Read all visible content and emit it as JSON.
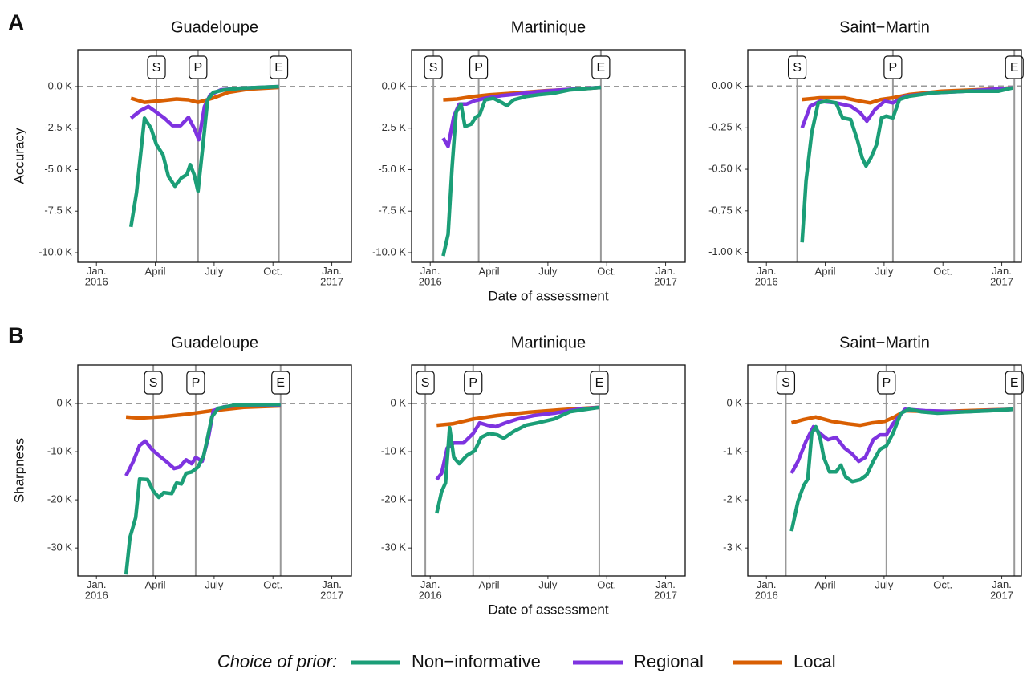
{
  "panel_labels": [
    "A",
    "B"
  ],
  "legend": {
    "title": "Choice of prior:",
    "items": [
      {
        "name": "Non−informative",
        "color": "#1b9e77"
      },
      {
        "name": "Regional",
        "color": "#7e33e0"
      },
      {
        "name": "Local",
        "color": "#d95f02"
      }
    ]
  },
  "chart_data": [
    {
      "type": "line",
      "title": "Guadeloupe",
      "ylabel": "Accuracy",
      "xlim": [
        -0.95,
        13
      ],
      "ylim": [
        -10.58,
        2.22
      ],
      "xticks": [
        {
          "value": 0,
          "label": "Jan.\n2016"
        },
        {
          "value": 3,
          "label": "April"
        },
        {
          "value": 6,
          "label": "July"
        },
        {
          "value": 9,
          "label": "Oct."
        },
        {
          "value": 12,
          "label": "Jan.\n2017"
        }
      ],
      "yticks": [
        {
          "value": 0,
          "label": "0.0 K"
        },
        {
          "value": -2.5,
          "label": "-2.5 K"
        },
        {
          "value": -5,
          "label": "-5.0 K"
        },
        {
          "value": -7.5,
          "label": "-7.5 K"
        },
        {
          "value": -10,
          "label": "-10.0 K"
        }
      ],
      "reference_line": 0,
      "events": [
        {
          "label": "S",
          "x": 3.06
        },
        {
          "label": "P",
          "x": 5.18
        },
        {
          "label": "E",
          "x": 9.3
        }
      ],
      "series": [
        {
          "x": [
            1.76,
            2.04,
            2.45,
            2.78,
            3.06,
            3.39,
            3.67,
            4.0,
            4.33,
            4.61,
            4.78,
            4.98,
            5.18,
            5.43,
            5.67,
            5.96,
            6.53,
            7.35,
            9.3
          ],
          "values": [
            -8.45,
            -6.4,
            -1.9,
            -2.5,
            -3.5,
            -4.1,
            -5.4,
            -6.0,
            -5.5,
            -5.3,
            -4.7,
            -5.3,
            -6.3,
            -3.5,
            -0.8,
            -0.35,
            -0.2,
            -0.1,
            0
          ]
        },
        {
          "x": [
            1.76,
            2.24,
            2.65,
            3.06,
            3.47,
            3.88,
            4.29,
            4.69,
            4.98,
            5.22,
            5.51,
            5.8,
            6.33,
            7.35,
            9.3
          ],
          "values": [
            -1.9,
            -1.45,
            -1.2,
            -1.55,
            -1.9,
            -2.35,
            -2.35,
            -1.85,
            -2.5,
            -3.2,
            -1.2,
            -0.5,
            -0.2,
            -0.1,
            0
          ]
        },
        {
          "x": [
            1.76,
            2.45,
            3.27,
            4.08,
            4.69,
            5.18,
            5.92,
            6.73,
            7.76,
            9.3
          ],
          "values": [
            -0.7,
            -0.95,
            -0.85,
            -0.75,
            -0.8,
            -0.95,
            -0.7,
            -0.35,
            -0.15,
            -0.05
          ]
        }
      ]
    },
    {
      "type": "line",
      "title": "Martinique",
      "xlabel": "Date of assessment",
      "xlim": [
        -0.95,
        13
      ],
      "ylim": [
        -10.58,
        2.22
      ],
      "xticks": [
        {
          "value": 0,
          "label": "Jan.\n2016"
        },
        {
          "value": 3,
          "label": "April"
        },
        {
          "value": 6,
          "label": "July"
        },
        {
          "value": 9,
          "label": "Oct."
        },
        {
          "value": 12,
          "label": "Jan.\n2017"
        }
      ],
      "yticks": [
        {
          "value": 0,
          "label": "0.0 K"
        },
        {
          "value": -2.5,
          "label": "-2.5 K"
        },
        {
          "value": -5,
          "label": "-5.0 K"
        },
        {
          "value": -7.5,
          "label": "-7.5 K"
        },
        {
          "value": -10,
          "label": "-10.0 K"
        }
      ],
      "reference_line": 0,
      "events": [
        {
          "label": "S",
          "x": 0.16
        },
        {
          "label": "P",
          "x": 2.47
        },
        {
          "label": "E",
          "x": 8.7
        }
      ],
      "series": [
        {
          "x": [
            0.66,
            0.91,
            1.11,
            1.32,
            1.57,
            1.77,
            2.1,
            2.31,
            2.52,
            2.8,
            3.22,
            3.63,
            3.92,
            4.25,
            4.87,
            5.48,
            6.31,
            7.13,
            8.7
          ],
          "values": [
            -10.2,
            -8.9,
            -4.9,
            -1.55,
            -1.05,
            -2.4,
            -2.25,
            -1.85,
            -1.7,
            -0.8,
            -0.7,
            -0.95,
            -1.15,
            -0.8,
            -0.6,
            -0.5,
            -0.4,
            -0.2,
            -0.05
          ]
        },
        {
          "x": [
            0.66,
            0.91,
            1.2,
            1.48,
            1.86,
            2.27,
            2.8,
            3.63,
            4.45,
            5.48,
            6.72,
            8.7
          ],
          "values": [
            -3.1,
            -3.6,
            -1.8,
            -1.05,
            -1.05,
            -0.85,
            -0.7,
            -0.55,
            -0.45,
            -0.3,
            -0.2,
            -0.05
          ]
        },
        {
          "x": [
            0.66,
            1.36,
            2.19,
            3.01,
            4.25,
            5.9,
            7.55,
            8.7
          ],
          "values": [
            -0.8,
            -0.75,
            -0.6,
            -0.5,
            -0.4,
            -0.25,
            -0.15,
            -0.05
          ]
        }
      ]
    },
    {
      "type": "line",
      "title": "Saint−Martin",
      "xlim": [
        -0.95,
        13
      ],
      "ylim": [
        -1.06,
        0.22
      ],
      "xticks": [
        {
          "value": 0,
          "label": "Jan.\n2016"
        },
        {
          "value": 3,
          "label": "April"
        },
        {
          "value": 6,
          "label": "July"
        },
        {
          "value": 9,
          "label": "Oct."
        },
        {
          "value": 12,
          "label": "Jan.\n2017"
        }
      ],
      "yticks": [
        {
          "value": 0,
          "label": "0.00 K"
        },
        {
          "value": -0.25,
          "label": "-0.25 K"
        },
        {
          "value": -0.5,
          "label": "-0.50 K"
        },
        {
          "value": -0.75,
          "label": "-0.75 K"
        },
        {
          "value": -1,
          "label": "-1.00 K"
        }
      ],
      "reference_line": 0,
      "events": [
        {
          "label": "S",
          "x": 1.57
        },
        {
          "label": "P",
          "x": 6.45
        },
        {
          "label": "E",
          "x": 12.64
        }
      ],
      "series": [
        {
          "x": [
            1.82,
            2.02,
            2.31,
            2.64,
            3.06,
            3.55,
            3.88,
            4.3,
            4.63,
            4.88,
            5.08,
            5.33,
            5.62,
            5.87,
            6.12,
            6.45,
            6.78,
            7.27,
            8.51,
            10.17,
            11.82,
            12.56
          ],
          "values": [
            -0.94,
            -0.57,
            -0.28,
            -0.1,
            -0.09,
            -0.1,
            -0.19,
            -0.2,
            -0.32,
            -0.43,
            -0.48,
            -0.43,
            -0.35,
            -0.19,
            -0.18,
            -0.19,
            -0.08,
            -0.06,
            -0.04,
            -0.03,
            -0.03,
            -0.01
          ]
        },
        {
          "x": [
            1.82,
            2.23,
            2.73,
            3.55,
            4.3,
            4.79,
            5.12,
            5.54,
            6.03,
            6.45,
            7.07,
            8.51,
            10.17,
            12.56
          ],
          "values": [
            -0.25,
            -0.12,
            -0.09,
            -0.1,
            -0.12,
            -0.16,
            -0.21,
            -0.14,
            -0.09,
            -0.1,
            -0.06,
            -0.04,
            -0.03,
            -0.01
          ]
        },
        {
          "x": [
            1.82,
            2.73,
            3.97,
            4.79,
            5.29,
            5.83,
            6.45,
            7.27,
            8.93,
            11.0,
            12.56
          ],
          "values": [
            -0.08,
            -0.07,
            -0.07,
            -0.09,
            -0.1,
            -0.08,
            -0.07,
            -0.05,
            -0.03,
            -0.02,
            -0.01
          ]
        }
      ]
    },
    {
      "type": "line",
      "title": "Guadeloupe",
      "ylabel": "Sharpness",
      "xlim": [
        -0.95,
        13
      ],
      "ylim": [
        -35.8,
        8
      ],
      "xticks": [
        {
          "value": 0,
          "label": "Jan.\n2016"
        },
        {
          "value": 3,
          "label": "April"
        },
        {
          "value": 6,
          "label": "July"
        },
        {
          "value": 9,
          "label": "Oct."
        },
        {
          "value": 12,
          "label": "Jan.\n2017"
        }
      ],
      "yticks": [
        {
          "value": 0,
          "label": "0 K"
        },
        {
          "value": -10,
          "label": "-10 K"
        },
        {
          "value": -20,
          "label": "-20 K"
        },
        {
          "value": -30,
          "label": "-30 K"
        }
      ],
      "reference_line": 0,
      "events": [
        {
          "label": "S",
          "x": 2.9
        },
        {
          "label": "P",
          "x": 5.06
        },
        {
          "label": "E",
          "x": 9.39
        }
      ],
      "series": [
        {
          "x": [
            1.51,
            1.71,
            2.0,
            2.2,
            2.61,
            2.9,
            3.18,
            3.43,
            3.84,
            4.08,
            4.33,
            4.57,
            4.86,
            5.18,
            5.47,
            5.67,
            5.88,
            6.2,
            7.1,
            9.39
          ],
          "values": [
            -35.5,
            -27.8,
            -23.7,
            -15.7,
            -15.8,
            -18.2,
            -19.5,
            -18.5,
            -18.7,
            -16.5,
            -16.7,
            -14.5,
            -14.2,
            -13.2,
            -10.8,
            -7,
            -2.8,
            -1,
            -0.3,
            -0.2
          ]
        },
        {
          "x": [
            1.51,
            1.88,
            2.2,
            2.49,
            2.82,
            3.18,
            3.55,
            3.96,
            4.24,
            4.57,
            4.86,
            5.06,
            5.39,
            5.71,
            5.96,
            6.49,
            7.51,
            9.39
          ],
          "values": [
            -15,
            -12,
            -8.7,
            -7.8,
            -9.5,
            -10.8,
            -12,
            -13.5,
            -13.2,
            -11.7,
            -12.5,
            -11.2,
            -12,
            -7,
            -1.5,
            -0.7,
            -0.3,
            -0.3
          ]
        },
        {
          "x": [
            1.51,
            2.2,
            3.43,
            4.65,
            5.88,
            7.51,
            9.39
          ],
          "values": [
            -2.8,
            -3,
            -2.7,
            -2.2,
            -1.5,
            -0.8,
            -0.5
          ]
        }
      ]
    },
    {
      "type": "line",
      "title": "Martinique",
      "xlabel": "Date of assessment",
      "xlim": [
        -0.95,
        13
      ],
      "ylim": [
        -35.8,
        8
      ],
      "xticks": [
        {
          "value": 0,
          "label": "Jan.\n2016"
        },
        {
          "value": 3,
          "label": "April"
        },
        {
          "value": 6,
          "label": "July"
        },
        {
          "value": 9,
          "label": "Oct."
        },
        {
          "value": 12,
          "label": "Jan.\n2017"
        }
      ],
      "yticks": [
        {
          "value": 0,
          "label": "0 K"
        },
        {
          "value": -10,
          "label": "-10 K"
        },
        {
          "value": -20,
          "label": "-20 K"
        },
        {
          "value": -30,
          "label": "-30 K"
        }
      ],
      "reference_line": 0,
      "events": [
        {
          "label": "S",
          "x": -0.25
        },
        {
          "label": "P",
          "x": 2.19
        },
        {
          "label": "E",
          "x": 8.62
        }
      ],
      "series": [
        {
          "x": [
            0.33,
            0.58,
            0.78,
            0.99,
            1.2,
            1.48,
            1.86,
            2.27,
            2.6,
            3.01,
            3.42,
            3.75,
            4.25,
            4.87,
            5.48,
            6.31,
            7.13,
            8.62
          ],
          "values": [
            -22.8,
            -18.3,
            -16.5,
            -5,
            -11.2,
            -12.5,
            -10.8,
            -9.8,
            -7,
            -6.2,
            -6.5,
            -7.2,
            -5.8,
            -4.5,
            -4,
            -3.2,
            -1.7,
            -0.8
          ]
        },
        {
          "x": [
            0.33,
            0.58,
            0.87,
            1.2,
            1.69,
            2.19,
            2.52,
            2.93,
            3.34,
            3.84,
            4.45,
            5.28,
            6.31,
            7.55,
            8.62
          ],
          "values": [
            -15.8,
            -14.5,
            -9.2,
            -8.2,
            -8.2,
            -6.2,
            -4,
            -4.5,
            -4.8,
            -4,
            -3.2,
            -2.5,
            -2,
            -1.2,
            -0.8
          ]
        },
        {
          "x": [
            0.33,
            1.15,
            2.19,
            3.42,
            5.07,
            6.72,
            8.62
          ],
          "values": [
            -4.5,
            -4.2,
            -3.2,
            -2.5,
            -1.8,
            -1.3,
            -0.8
          ]
        }
      ]
    },
    {
      "type": "line",
      "title": "Saint−Martin",
      "xlim": [
        -0.95,
        13
      ],
      "ylim": [
        -3.58,
        0.8
      ],
      "xticks": [
        {
          "value": 0,
          "label": "Jan.\n2016"
        },
        {
          "value": 3,
          "label": "April"
        },
        {
          "value": 6,
          "label": "July"
        },
        {
          "value": 9,
          "label": "Oct."
        },
        {
          "value": 12,
          "label": "Jan.\n2017"
        }
      ],
      "yticks": [
        {
          "value": 0,
          "label": "0 K"
        },
        {
          "value": -1,
          "label": "-1 K"
        },
        {
          "value": -2,
          "label": "-2 K"
        },
        {
          "value": -3,
          "label": "-3 K"
        }
      ],
      "reference_line": 0,
      "events": [
        {
          "label": "S",
          "x": 0.99
        },
        {
          "label": "P",
          "x": 6.12
        },
        {
          "label": "E",
          "x": 12.64
        }
      ],
      "series": [
        {
          "x": [
            1.28,
            1.61,
            1.9,
            2.11,
            2.31,
            2.52,
            2.73,
            2.93,
            3.22,
            3.55,
            3.8,
            4.05,
            4.38,
            4.79,
            5.12,
            5.45,
            5.79,
            6.12,
            6.45,
            6.86,
            7.27,
            7.89,
            8.72,
            10.17,
            11.4,
            12.56
          ],
          "values": [
            -2.65,
            -2.03,
            -1.7,
            -1.57,
            -0.62,
            -0.48,
            -0.7,
            -1.12,
            -1.42,
            -1.42,
            -1.28,
            -1.53,
            -1.62,
            -1.58,
            -1.48,
            -1.2,
            -0.95,
            -0.88,
            -0.62,
            -0.2,
            -0.12,
            -0.17,
            -0.2,
            -0.17,
            -0.15,
            -0.12
          ]
        },
        {
          "x": [
            1.28,
            1.61,
            2.02,
            2.4,
            2.73,
            3.14,
            3.55,
            3.97,
            4.38,
            4.71,
            5.04,
            5.45,
            5.79,
            6.12,
            6.45,
            7.07,
            8.1,
            10.17,
            12.56
          ],
          "values": [
            -1.45,
            -1.2,
            -0.78,
            -0.48,
            -0.62,
            -0.75,
            -0.7,
            -0.92,
            -1.05,
            -1.2,
            -1.12,
            -0.75,
            -0.65,
            -0.65,
            -0.42,
            -0.12,
            -0.15,
            -0.17,
            -0.12
          ]
        },
        {
          "x": [
            1.28,
            1.9,
            2.52,
            3.35,
            4.17,
            4.79,
            5.41,
            6.03,
            6.53,
            7.07,
            8.51,
            10.17,
            12.56
          ],
          "values": [
            -0.4,
            -0.33,
            -0.28,
            -0.37,
            -0.42,
            -0.45,
            -0.4,
            -0.37,
            -0.28,
            -0.15,
            -0.17,
            -0.15,
            -0.12
          ]
        }
      ]
    }
  ]
}
